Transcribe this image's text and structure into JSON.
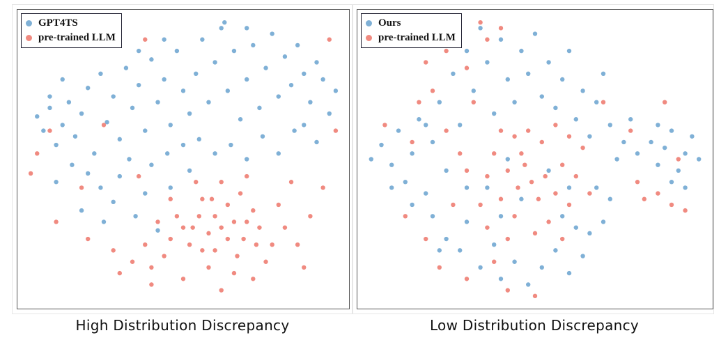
{
  "colors": {
    "series_a": "#7fb0d6",
    "series_b": "#f08a80"
  },
  "chart_data": [
    {
      "type": "scatter",
      "title": "High Distribution Discrepancy",
      "grid": false,
      "legend_position": "top-left",
      "axes_visible": false,
      "xlim": [
        0,
        100
      ],
      "ylim": [
        0,
        100
      ],
      "series": [
        {
          "name": "GPT4TS",
          "color": "#7fb0d6",
          "points": [
            [
              4,
              65
            ],
            [
              6,
              60
            ],
            [
              8,
              68
            ],
            [
              10,
              55
            ],
            [
              12,
              62
            ],
            [
              14,
              70
            ],
            [
              16,
              58
            ],
            [
              18,
              66
            ],
            [
              20,
              75
            ],
            [
              22,
              52
            ],
            [
              24,
              80
            ],
            [
              26,
              63
            ],
            [
              28,
              72
            ],
            [
              30,
              57
            ],
            [
              32,
              82
            ],
            [
              34,
              68
            ],
            [
              36,
              76
            ],
            [
              38,
              60
            ],
            [
              40,
              85
            ],
            [
              42,
              70
            ],
            [
              44,
              78
            ],
            [
              46,
              62
            ],
            [
              48,
              88
            ],
            [
              50,
              74
            ],
            [
              52,
              66
            ],
            [
              54,
              80
            ],
            [
              56,
              92
            ],
            [
              58,
              70
            ],
            [
              60,
              84
            ],
            [
              62,
              96
            ],
            [
              64,
              74
            ],
            [
              66,
              88
            ],
            [
              68,
              64
            ],
            [
              70,
              78
            ],
            [
              72,
              90
            ],
            [
              74,
              68
            ],
            [
              76,
              82
            ],
            [
              78,
              94
            ],
            [
              80,
              72
            ],
            [
              82,
              86
            ],
            [
              84,
              76
            ],
            [
              86,
              90
            ],
            [
              88,
              80
            ],
            [
              90,
              70
            ],
            [
              92,
              84
            ],
            [
              94,
              78
            ],
            [
              96,
              66
            ],
            [
              98,
              74
            ],
            [
              85,
              60
            ],
            [
              75,
              58
            ],
            [
              88,
              62
            ],
            [
              92,
              56
            ],
            [
              20,
              45
            ],
            [
              24,
              40
            ],
            [
              28,
              35
            ],
            [
              30,
              44
            ],
            [
              35,
              30
            ],
            [
              38,
              38
            ],
            [
              42,
              25
            ],
            [
              40,
              48
            ],
            [
              45,
              52
            ],
            [
              50,
              55
            ],
            [
              55,
              57
            ],
            [
              60,
              52
            ],
            [
              65,
              55
            ],
            [
              70,
              50
            ],
            [
              80,
              52
            ],
            [
              15,
              48
            ],
            [
              10,
              42
            ],
            [
              33,
              50
            ],
            [
              46,
              40
            ],
            [
              63,
              98
            ],
            [
              70,
              96
            ],
            [
              52,
              46
            ],
            [
              18,
              32
            ],
            [
              25,
              28
            ],
            [
              12,
              78
            ],
            [
              8,
              72
            ],
            [
              36,
              88
            ],
            [
              44,
              92
            ]
          ]
        },
        {
          "name": "pre-trained LLM",
          "color": "#f08a80",
          "points": [
            [
              62,
              26
            ],
            [
              58,
              24
            ],
            [
              66,
              28
            ],
            [
              55,
              30
            ],
            [
              69,
              22
            ],
            [
              50,
              26
            ],
            [
              74,
              26
            ],
            [
              60,
              18
            ],
            [
              64,
              34
            ],
            [
              52,
              20
            ],
            [
              72,
              32
            ],
            [
              46,
              22
            ],
            [
              78,
              20
            ],
            [
              56,
              36
            ],
            [
              68,
              38
            ],
            [
              48,
              30
            ],
            [
              76,
              14
            ],
            [
              58,
              12
            ],
            [
              66,
              10
            ],
            [
              44,
              16
            ],
            [
              82,
              26
            ],
            [
              86,
              20
            ],
            [
              40,
              12
            ],
            [
              50,
              8
            ],
            [
              62,
              4
            ],
            [
              72,
              8
            ],
            [
              80,
              34
            ],
            [
              84,
              42
            ],
            [
              54,
              42
            ],
            [
              62,
              42
            ],
            [
              70,
              44
            ],
            [
              90,
              30
            ],
            [
              42,
              28
            ],
            [
              38,
              20
            ],
            [
              34,
              14
            ],
            [
              30,
              10
            ],
            [
              88,
              12
            ],
            [
              60,
              30
            ],
            [
              64,
              22
            ],
            [
              70,
              28
            ],
            [
              56,
              18
            ],
            [
              53,
              26
            ],
            [
              67,
              16
            ],
            [
              59,
              36
            ],
            [
              73,
              20
            ],
            [
              46,
              36
            ],
            [
              2,
              45
            ],
            [
              4,
              52
            ],
            [
              10,
              28
            ],
            [
              20,
              22
            ],
            [
              28,
              18
            ],
            [
              8,
              60
            ],
            [
              36,
              44
            ],
            [
              40,
              6
            ],
            [
              94,
              40
            ],
            [
              98,
              60
            ],
            [
              38,
              92
            ],
            [
              96,
              92
            ],
            [
              18,
              40
            ],
            [
              25,
              62
            ]
          ]
        }
      ]
    },
    {
      "type": "scatter",
      "title": "Low Distribution Discrepancy",
      "grid": false,
      "legend_position": "top-left",
      "axes_visible": false,
      "xlim": [
        0,
        100
      ],
      "ylim": [
        0,
        100
      ],
      "series": [
        {
          "name": "Ours",
          "color": "#7fb0d6",
          "points": [
            [
              2,
              50
            ],
            [
              5,
              55
            ],
            [
              8,
              48
            ],
            [
              10,
              60
            ],
            [
              12,
              42
            ],
            [
              14,
              52
            ],
            [
              16,
              64
            ],
            [
              18,
              38
            ],
            [
              20,
              56
            ],
            [
              22,
              70
            ],
            [
              24,
              46
            ],
            [
              26,
              80
            ],
            [
              28,
              62
            ],
            [
              30,
              88
            ],
            [
              32,
              74
            ],
            [
              34,
              96
            ],
            [
              36,
              84
            ],
            [
              38,
              66
            ],
            [
              40,
              92
            ],
            [
              42,
              78
            ],
            [
              44,
              70
            ],
            [
              46,
              88
            ],
            [
              48,
              80
            ],
            [
              50,
              94
            ],
            [
              52,
              72
            ],
            [
              54,
              84
            ],
            [
              56,
              68
            ],
            [
              58,
              78
            ],
            [
              60,
              88
            ],
            [
              62,
              64
            ],
            [
              64,
              74
            ],
            [
              66,
              58
            ],
            [
              68,
              70
            ],
            [
              70,
              80
            ],
            [
              72,
              62
            ],
            [
              74,
              50
            ],
            [
              76,
              56
            ],
            [
              78,
              64
            ],
            [
              80,
              52
            ],
            [
              84,
              56
            ],
            [
              86,
              48
            ],
            [
              88,
              54
            ],
            [
              90,
              60
            ],
            [
              92,
              46
            ],
            [
              94,
              52
            ],
            [
              96,
              58
            ],
            [
              98,
              50
            ],
            [
              90,
              42
            ],
            [
              86,
              62
            ],
            [
              94,
              40
            ],
            [
              20,
              30
            ],
            [
              24,
              22
            ],
            [
              28,
              18
            ],
            [
              30,
              28
            ],
            [
              34,
              12
            ],
            [
              38,
              20
            ],
            [
              40,
              8
            ],
            [
              44,
              14
            ],
            [
              48,
              6
            ],
            [
              52,
              12
            ],
            [
              56,
              18
            ],
            [
              60,
              10
            ],
            [
              64,
              16
            ],
            [
              62,
              26
            ],
            [
              66,
              24
            ],
            [
              70,
              28
            ],
            [
              58,
              30
            ],
            [
              8,
              40
            ],
            [
              14,
              34
            ],
            [
              36,
              40
            ],
            [
              42,
              50
            ],
            [
              46,
              36
            ],
            [
              54,
              46
            ],
            [
              60,
              40
            ],
            [
              40,
              30
            ],
            [
              30,
              40
            ],
            [
              68,
              40
            ],
            [
              72,
              36
            ],
            [
              22,
              18
            ],
            [
              18,
              62
            ]
          ]
        },
        {
          "name": "pre-trained LLM",
          "color": "#f08a80",
          "points": [
            [
              49,
              42
            ],
            [
              45,
              40
            ],
            [
              53,
              44
            ],
            [
              42,
              46
            ],
            [
              56,
              38
            ],
            [
              40,
              36
            ],
            [
              58,
              48
            ],
            [
              36,
              44
            ],
            [
              60,
              34
            ],
            [
              46,
              52
            ],
            [
              52,
              56
            ],
            [
              44,
              30
            ],
            [
              54,
              28
            ],
            [
              38,
              52
            ],
            [
              62,
              44
            ],
            [
              48,
              60
            ],
            [
              56,
              62
            ],
            [
              40,
              60
            ],
            [
              34,
              34
            ],
            [
              64,
              54
            ],
            [
              30,
              46
            ],
            [
              66,
              38
            ],
            [
              50,
              24
            ],
            [
              42,
              22
            ],
            [
              58,
              22
            ],
            [
              47,
              48
            ],
            [
              51,
              36
            ],
            [
              44,
              58
            ],
            [
              36,
              26
            ],
            [
              60,
              58
            ],
            [
              24,
              60
            ],
            [
              20,
              74
            ],
            [
              18,
              84
            ],
            [
              24,
              88
            ],
            [
              30,
              82
            ],
            [
              16,
              70
            ],
            [
              14,
              56
            ],
            [
              34,
              98
            ],
            [
              36,
              92
            ],
            [
              40,
              96
            ],
            [
              32,
              70
            ],
            [
              28,
              52
            ],
            [
              12,
              30
            ],
            [
              18,
              22
            ],
            [
              22,
              12
            ],
            [
              30,
              8
            ],
            [
              42,
              4
            ],
            [
              50,
              2
            ],
            [
              38,
              14
            ],
            [
              26,
              34
            ],
            [
              80,
              42
            ],
            [
              82,
              36
            ],
            [
              90,
              34
            ],
            [
              94,
              32
            ],
            [
              86,
              38
            ],
            [
              78,
              60
            ],
            [
              92,
              50
            ],
            [
              70,
              70
            ],
            [
              6,
              62
            ],
            [
              88,
              70
            ]
          ]
        }
      ]
    }
  ]
}
